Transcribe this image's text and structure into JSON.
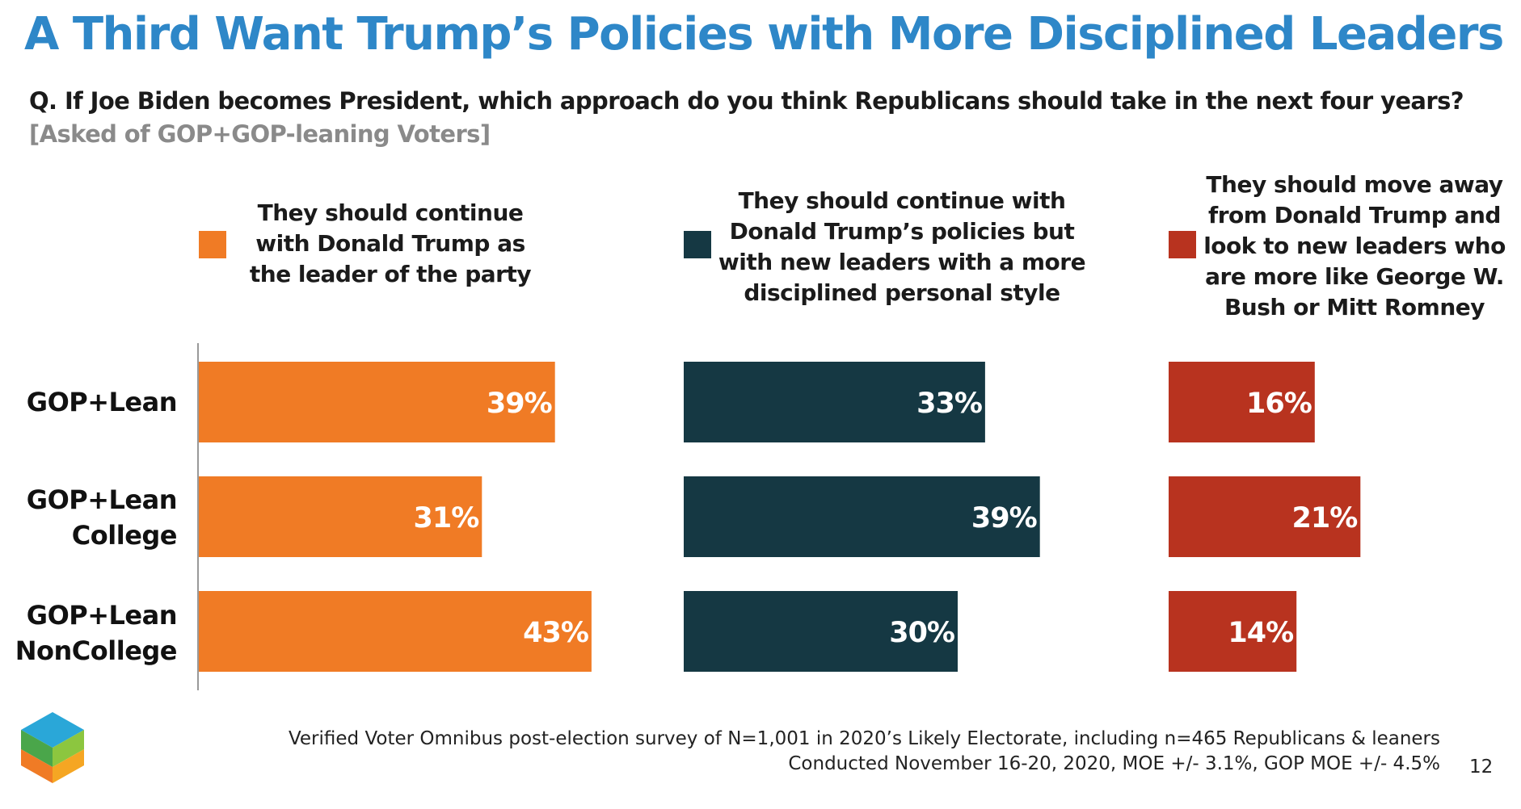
{
  "title": "A Third Want Trump’s Policies with More Disciplined Leaders",
  "question": "Q. If Joe Biden becomes President, which approach do you think Republicans should take in the next four years?",
  "subquestion": "[Asked of GOP+GOP-leaning Voters]",
  "colors": {
    "title": "#2e87c8",
    "series1": "#f07b25",
    "series2": "#153843",
    "series3": "#b8331f"
  },
  "legend": [
    {
      "lines": [
        "They should continue",
        "with Donald Trump as",
        "the leader of the party"
      ]
    },
    {
      "lines": [
        "They should continue with",
        "Donald Trump’s policies but",
        "with new leaders with a more",
        "disciplined personal style"
      ]
    },
    {
      "lines": [
        "They should move away",
        "from Donald Trump and",
        "look to new leaders who",
        "are more like George W.",
        "Bush or Mitt Romney"
      ]
    }
  ],
  "row_labels": [
    [
      "GOP+Lean"
    ],
    [
      "GOP+Lean",
      "College"
    ],
    [
      "GOP+Lean",
      "NonCollege"
    ]
  ],
  "chart_data": {
    "type": "bar",
    "orientation": "horizontal",
    "title": "A Third Want Trump’s Policies with More Disciplined Leaders",
    "categories": [
      "GOP+Lean",
      "GOP+Lean College",
      "GOP+Lean NonCollege"
    ],
    "series": [
      {
        "name": "They should continue with Donald Trump as the leader of the party",
        "values": [
          39,
          31,
          43
        ],
        "labels": [
          "39%",
          "31%",
          "43%"
        ]
      },
      {
        "name": "They should continue with Donald Trump’s policies but with new leaders with a more disciplined personal style",
        "values": [
          33,
          39,
          30
        ],
        "labels": [
          "33%",
          "39%",
          "30%"
        ]
      },
      {
        "name": "They should move away from Donald Trump and look to new leaders who are more like George W. Bush or Mitt Romney",
        "values": [
          16,
          21,
          14
        ],
        "labels": [
          "16%",
          "21%",
          "14%"
        ]
      }
    ],
    "unit": "%",
    "xlim": [
      0,
      50
    ]
  },
  "footnote": {
    "line1": "Verified Voter Omnibus post-election survey of N=1,001 in 2020’s Likely Electorate, including n=465 Republicans & leaners",
    "line2": "Conducted November 16-20, 2020, MOE +/- 3.1%, GOP MOE +/- 4.5%"
  },
  "page_number": "12"
}
